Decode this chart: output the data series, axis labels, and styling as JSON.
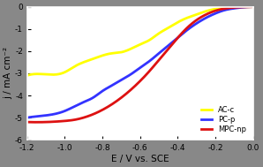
{
  "title": "",
  "xlabel": "E / V vs. SCE",
  "ylabel": "j / mA cm⁻²",
  "xlim": [
    -1.2,
    0.0
  ],
  "ylim": [
    -6,
    0
  ],
  "xticks": [
    -1.2,
    -1.0,
    -0.8,
    -0.6,
    -0.4,
    -0.2,
    0.0
  ],
  "yticks": [
    0,
    -1,
    -2,
    -3,
    -4,
    -5,
    -6
  ],
  "background_color": "#888888",
  "plot_bg": "white",
  "legend_labels": [
    "AC-c",
    "PC-p",
    "MPC-np"
  ],
  "legend_colors": [
    "#ffff00",
    "#3333ff",
    "#dd1111"
  ],
  "ac_c": {
    "x": [
      -1.2,
      -1.1,
      -1.0,
      -0.95,
      -0.9,
      -0.85,
      -0.8,
      -0.75,
      -0.7,
      -0.65,
      -0.6,
      -0.55,
      -0.5,
      -0.45,
      -0.4,
      -0.35,
      -0.3,
      -0.25,
      -0.2,
      -0.15,
      -0.1,
      -0.05,
      0.0
    ],
    "y": [
      -3.1,
      -3.05,
      -2.95,
      -2.7,
      -2.5,
      -2.35,
      -2.2,
      -2.1,
      -2.05,
      -1.9,
      -1.7,
      -1.5,
      -1.2,
      -0.95,
      -0.7,
      -0.5,
      -0.35,
      -0.2,
      -0.1,
      -0.05,
      -0.02,
      -0.01,
      0.0
    ]
  },
  "pc_p": {
    "x": [
      -1.2,
      -1.1,
      -1.0,
      -0.95,
      -0.9,
      -0.85,
      -0.8,
      -0.75,
      -0.7,
      -0.65,
      -0.6,
      -0.55,
      -0.5,
      -0.45,
      -0.4,
      -0.35,
      -0.3,
      -0.25,
      -0.2,
      -0.15,
      -0.1,
      -0.05,
      0.0
    ],
    "y": [
      -5.0,
      -4.9,
      -4.7,
      -4.5,
      -4.3,
      -4.1,
      -3.8,
      -3.55,
      -3.3,
      -3.05,
      -2.75,
      -2.45,
      -2.1,
      -1.75,
      -1.4,
      -1.05,
      -0.75,
      -0.5,
      -0.3,
      -0.15,
      -0.07,
      -0.02,
      0.0
    ]
  },
  "mpc_np": {
    "x": [
      -1.2,
      -1.1,
      -1.0,
      -0.95,
      -0.9,
      -0.85,
      -0.8,
      -0.75,
      -0.7,
      -0.65,
      -0.6,
      -0.55,
      -0.5,
      -0.45,
      -0.4,
      -0.35,
      -0.3,
      -0.25,
      -0.2,
      -0.15,
      -0.1,
      -0.05,
      0.0
    ],
    "y": [
      -5.2,
      -5.2,
      -5.15,
      -5.1,
      -5.0,
      -4.85,
      -4.65,
      -4.4,
      -4.1,
      -3.75,
      -3.35,
      -2.9,
      -2.4,
      -1.9,
      -1.4,
      -0.95,
      -0.6,
      -0.35,
      -0.18,
      -0.08,
      -0.03,
      -0.01,
      0.0
    ]
  }
}
